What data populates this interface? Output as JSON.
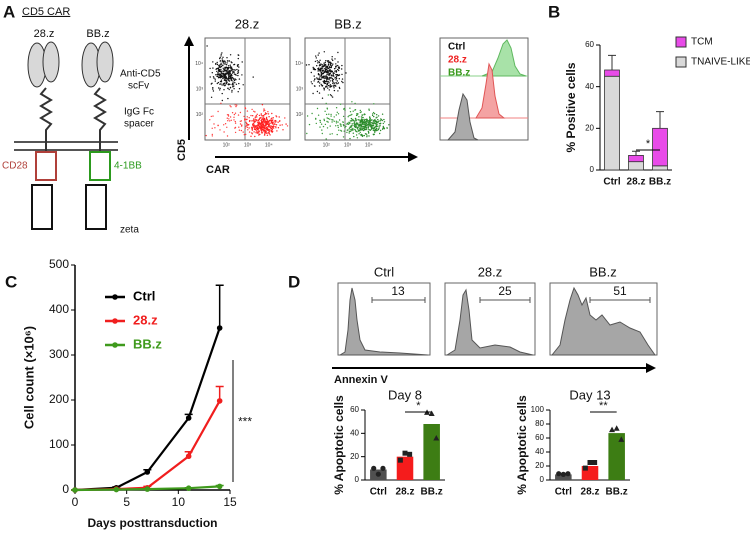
{
  "panel_labels": [
    "A",
    "B",
    "C",
    "D"
  ],
  "schematic": {
    "title": "CD5 CAR",
    "constructs": [
      "28.z",
      "BB.z"
    ],
    "scfv": [
      "Anti-CD5",
      "scFv"
    ],
    "spacer": [
      "IgG Fc",
      "spacer"
    ],
    "costim": [
      "CD28",
      "4-1BB"
    ],
    "zeta": "zeta"
  },
  "flow": {
    "titles": [
      "28.z",
      "BB.z"
    ],
    "y_label": "CD5",
    "x_label": "CAR",
    "tick_labels": [
      "10²",
      "10³",
      "10⁴"
    ],
    "overlay_legend": [
      "Ctrl",
      "28.z",
      "BB.z"
    ]
  },
  "annexin": {
    "titles": [
      "Ctrl",
      "28.z",
      "BB.z"
    ],
    "gates": [
      13,
      25,
      51
    ],
    "x_label": "Annexin V"
  },
  "chart_data": [
    {
      "type": "bar",
      "stacked": true,
      "categories": [
        "Ctrl",
        "28.z",
        "BB.z"
      ],
      "series": [
        {
          "name": "TNAIVE-LIKE",
          "color": "#d9d9d9",
          "values": [
            45,
            4,
            2
          ]
        },
        {
          "name": "TCM",
          "color": "#e84be8",
          "values": [
            3,
            3,
            18
          ],
          "errors": [
            7,
            2,
            8
          ]
        }
      ],
      "ylabel": "% Positive cells",
      "ylim": [
        0,
        60
      ],
      "yticks": [
        0,
        20,
        40,
        60
      ],
      "annotation": "*"
    },
    {
      "type": "line",
      "x": [
        0,
        4,
        7,
        11,
        14
      ],
      "xlabel": "Days posttransduction",
      "ylabel": "Cell count (×10⁶)",
      "xlim": [
        0,
        15
      ],
      "xticks": [
        0,
        5,
        10,
        15
      ],
      "ylim": [
        0,
        500
      ],
      "yticks": [
        0,
        100,
        200,
        300,
        400,
        500
      ],
      "series": [
        {
          "name": "Ctrl",
          "color": "#000000",
          "values": [
            0,
            5,
            40,
            160,
            360
          ],
          "errors": [
            0,
            2,
            5,
            8,
            95
          ]
        },
        {
          "name": "28.z",
          "color": "#f01e1e",
          "values": [
            0,
            2,
            5,
            75,
            198
          ],
          "errors": [
            0,
            1,
            3,
            10,
            32
          ]
        },
        {
          "name": "BB.z",
          "color": "#3f9a1c",
          "values": [
            0,
            1,
            2,
            4,
            8
          ],
          "errors": [
            0,
            0,
            0,
            1,
            2
          ]
        }
      ],
      "annotation": "***"
    },
    {
      "type": "bar",
      "title": "Day 8",
      "categories": [
        "Ctrl",
        "28.z",
        "BB.z"
      ],
      "values": [
        9,
        20,
        48
      ],
      "colors": [
        "#505050",
        "#f51c1c",
        "#3d7d14"
      ],
      "points": [
        [
          10,
          5,
          10
        ],
        [
          17,
          23,
          22
        ],
        [
          58,
          57,
          36
        ]
      ],
      "ylabel": "% Apoptotic cells",
      "ylim": [
        0,
        60
      ],
      "yticks": [
        0,
        20,
        40,
        60
      ],
      "annotation": "*"
    },
    {
      "type": "bar",
      "title": "Day 13",
      "categories": [
        "Ctrl",
        "28.z",
        "BB.z"
      ],
      "values": [
        8,
        20,
        67
      ],
      "colors": [
        "#505050",
        "#f51c1c",
        "#3d7d14"
      ],
      "points": [
        [
          9,
          8,
          9
        ],
        [
          17,
          25,
          25
        ],
        [
          72,
          74,
          58
        ]
      ],
      "ylabel": "% Apoptotic cells",
      "ylim": [
        0,
        100
      ],
      "yticks": [
        0,
        20,
        40,
        60,
        80,
        100
      ],
      "annotation": "**"
    }
  ]
}
